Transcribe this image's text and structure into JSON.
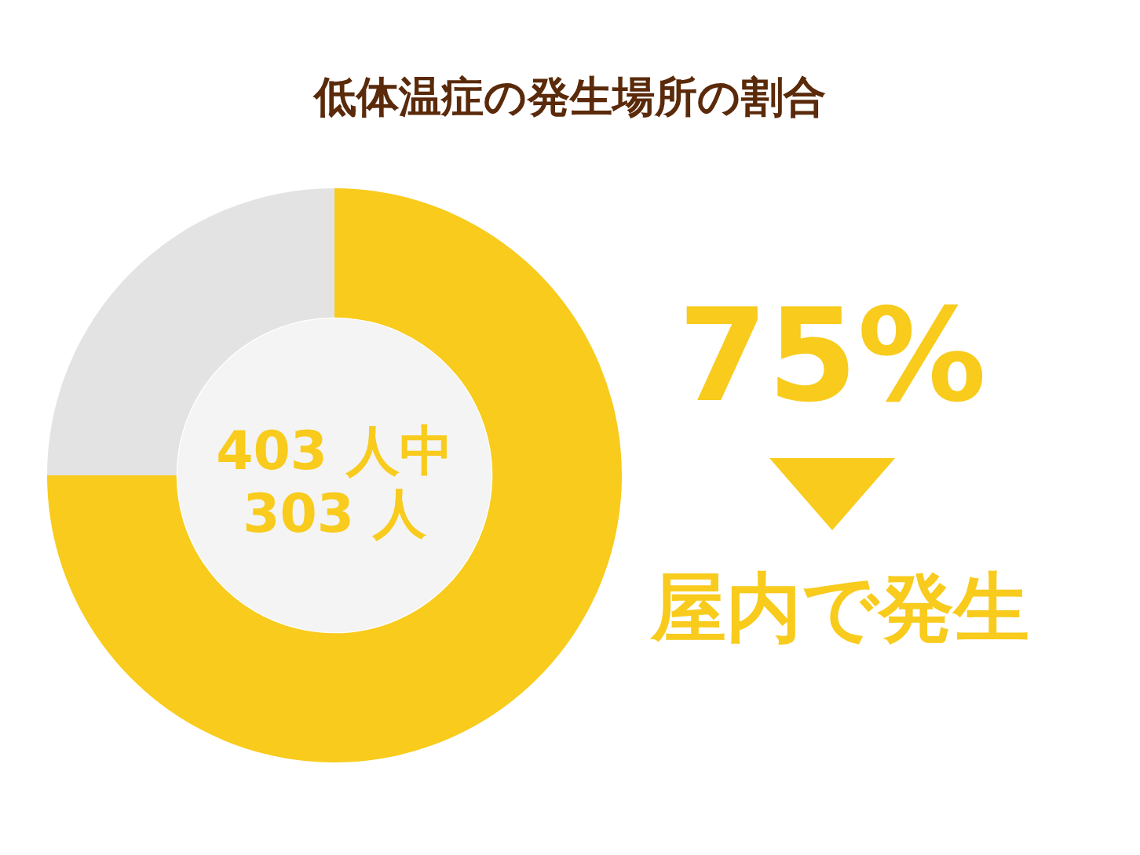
{
  "chart_data": {
    "type": "donut",
    "title": "低体温症の発生場所の割合",
    "categories": [
      null,
      null
    ],
    "values": [
      75,
      25
    ],
    "colors": [
      "#f8cb1c",
      "#e3e3e3"
    ],
    "annotations": [
      "403 人中",
      "303 人",
      "75%",
      "屋内で発生"
    ],
    "legend": false
  }
}
